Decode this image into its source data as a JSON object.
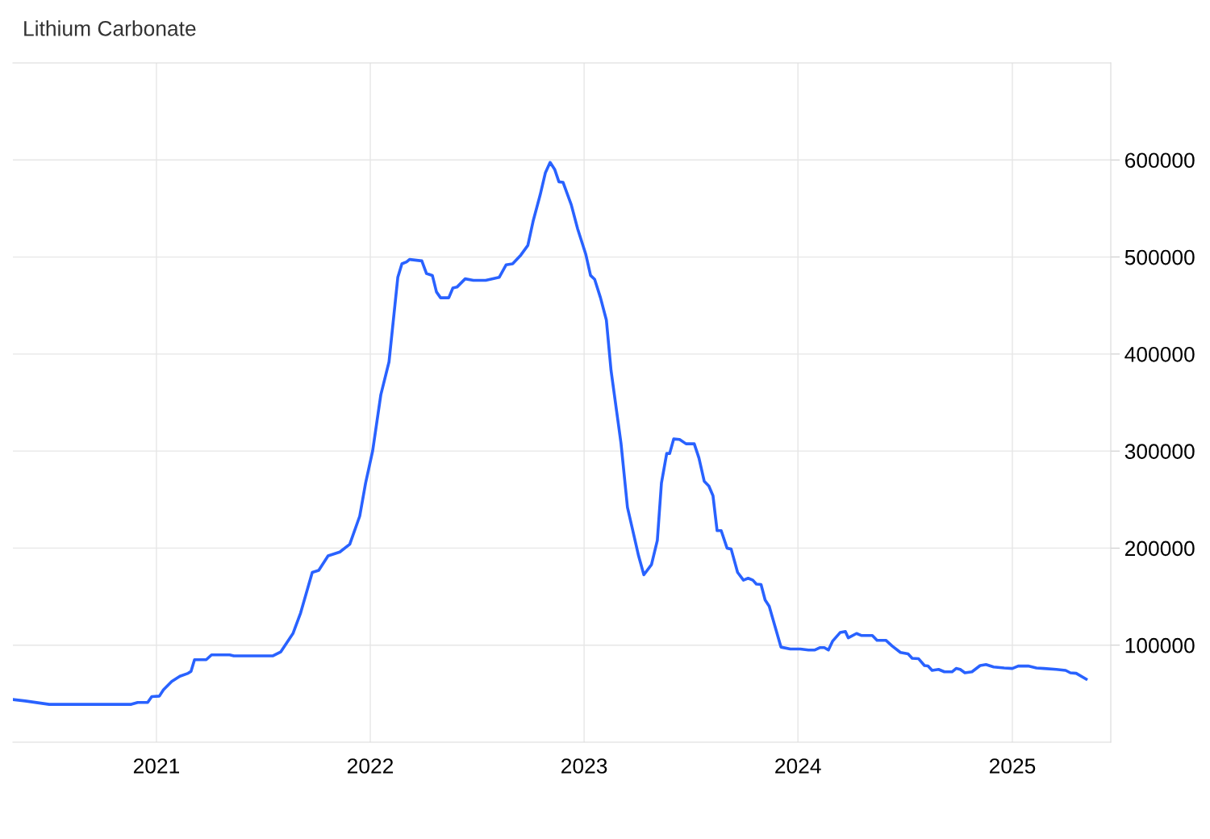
{
  "chart_data": {
    "type": "line",
    "title": "Lithium Carbonate",
    "x": [
      "2020-05-01",
      "2020-05-22",
      "2020-07-02",
      "2020-11-19",
      "2020-11-30",
      "2020-12-17",
      "2020-12-24",
      "2021-01-06",
      "2021-01-13",
      "2021-01-27",
      "2021-02-10",
      "2021-02-24",
      "2021-03-01",
      "2021-03-07",
      "2021-03-27",
      "2021-04-05",
      "2021-05-06",
      "2021-05-13",
      "2021-07-19",
      "2021-08-01",
      "2021-08-22",
      "2021-09-04",
      "2021-09-24",
      "2021-10-05",
      "2021-10-21",
      "2021-11-10",
      "2021-11-27",
      "2021-12-14",
      "2021-12-24",
      "2022-01-05",
      "2022-01-19",
      "2022-02-02",
      "2022-02-17",
      "2022-02-24",
      "2022-03-04",
      "2022-03-09",
      "2022-03-30",
      "2022-04-07",
      "2022-04-17",
      "2022-04-24",
      "2022-05-01",
      "2022-05-15",
      "2022-05-22",
      "2022-05-29",
      "2022-06-12",
      "2022-06-26",
      "2022-07-17",
      "2022-08-09",
      "2022-08-21",
      "2022-09-01",
      "2022-09-15",
      "2022-09-27",
      "2022-10-06",
      "2022-10-18",
      "2022-10-27",
      "2022-11-04",
      "2022-11-12",
      "2022-11-19",
      "2022-11-26",
      "2022-12-10",
      "2022-12-21",
      "2023-01-04",
      "2023-01-12",
      "2023-01-19",
      "2023-01-29",
      "2023-02-08",
      "2023-02-16",
      "2023-03-05",
      "2023-03-16",
      "2023-03-24",
      "2023-04-04",
      "2023-04-13",
      "2023-04-26",
      "2023-05-06",
      "2023-05-13",
      "2023-05-22",
      "2023-05-27",
      "2023-06-03",
      "2023-06-13",
      "2023-06-24",
      "2023-07-08",
      "2023-07-16",
      "2023-07-25",
      "2023-08-02",
      "2023-08-09",
      "2023-08-16",
      "2023-08-23",
      "2023-09-02",
      "2023-09-09",
      "2023-09-20",
      "2023-09-30",
      "2023-10-08",
      "2023-10-16",
      "2023-10-22",
      "2023-10-30",
      "2023-11-06",
      "2023-11-13",
      "2023-12-03",
      "2023-12-19",
      "2024-01-05",
      "2024-01-19",
      "2024-01-30",
      "2024-02-08",
      "2024-02-15",
      "2024-02-22",
      "2024-02-29",
      "2024-03-13",
      "2024-03-22",
      "2024-03-27",
      "2024-04-10",
      "2024-04-18",
      "2024-05-07",
      "2024-05-15",
      "2024-05-30",
      "2024-06-10",
      "2024-06-24",
      "2024-07-07",
      "2024-07-14",
      "2024-07-25",
      "2024-08-04",
      "2024-08-10",
      "2024-08-17",
      "2024-08-28",
      "2024-09-07",
      "2024-09-20",
      "2024-09-27",
      "2024-10-04",
      "2024-10-12",
      "2024-10-24",
      "2024-11-07",
      "2024-11-17",
      "2024-11-30",
      "2024-12-18",
      "2025-01-01",
      "2025-01-11",
      "2025-01-28",
      "2025-02-11",
      "2025-02-24",
      "2025-03-17",
      "2025-04-02",
      "2025-04-10",
      "2025-04-20",
      "2025-05-07"
    ],
    "series": [
      {
        "color": "#2962ff",
        "values": [
          44000,
          42500,
          39000,
          39000,
          41000,
          41000,
          47000,
          47500,
          54000,
          62500,
          68000,
          71000,
          73000,
          85000,
          85000,
          90000,
          90000,
          89000,
          89000,
          93000,
          112000,
          133000,
          175000,
          177000,
          192000,
          196000,
          204000,
          233000,
          267000,
          300000,
          358000,
          392000,
          479000,
          493000,
          495000,
          497500,
          496000,
          483000,
          481000,
          464000,
          458000,
          458000,
          468000,
          469000,
          477500,
          476000,
          476000,
          479000,
          492000,
          493000,
          502000,
          512000,
          537000,
          564000,
          587000,
          597500,
          590000,
          577500,
          577000,
          554000,
          529000,
          502500,
          481000,
          477000,
          458000,
          435000,
          383000,
          308000,
          242000,
          221000,
          192000,
          172500,
          183000,
          208000,
          267000,
          297500,
          297500,
          312500,
          312000,
          307500,
          307500,
          293000,
          269000,
          264000,
          254000,
          218000,
          218000,
          200000,
          199000,
          175000,
          167000,
          169000,
          167000,
          163000,
          162500,
          146500,
          140000,
          98000,
          96000,
          96000,
          95000,
          95000,
          97500,
          97500,
          95000,
          104000,
          113000,
          114000,
          107500,
          112000,
          110000,
          110000,
          105000,
          105000,
          99000,
          92500,
          91000,
          86500,
          86000,
          79000,
          78500,
          74000,
          75000,
          72500,
          72500,
          76000,
          75000,
          71500,
          72500,
          79000,
          80000,
          77500,
          76500,
          76000,
          78500,
          78500,
          76500,
          76000,
          75000,
          74000,
          71500,
          71000,
          65000
        ]
      }
    ],
    "xlim": [
      "2020-05-01",
      "2025-06-18"
    ],
    "xticks": [
      "2021",
      "2022",
      "2023",
      "2024",
      "2025"
    ],
    "ylim": [
      0,
      700000
    ],
    "yticks": [
      100000,
      200000,
      300000,
      400000,
      500000,
      600000
    ],
    "grid": true,
    "marker": "none",
    "line_style": "solid",
    "legend": false
  }
}
